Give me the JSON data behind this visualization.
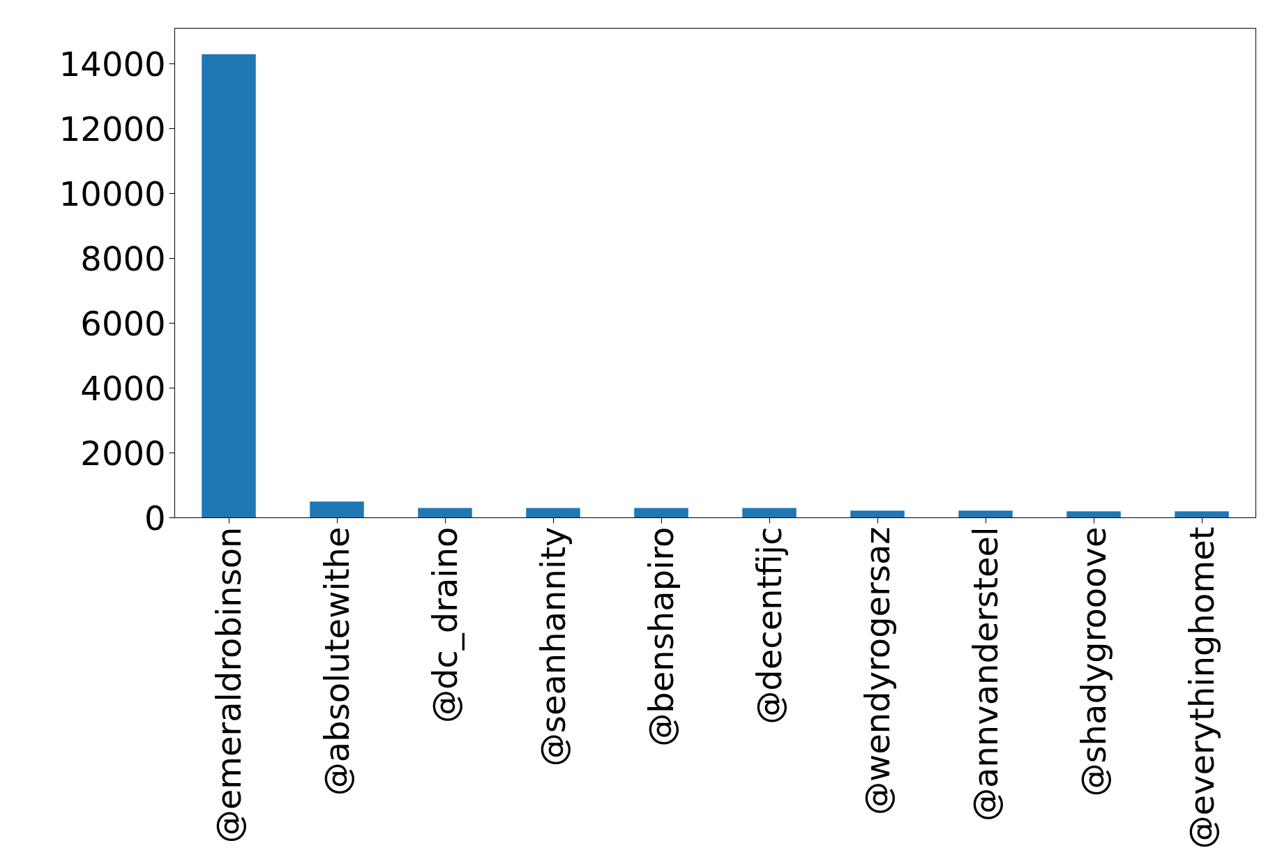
{
  "chart_data": {
    "type": "bar",
    "categories": [
      "@emeraldrobinson",
      "@absolutewithe",
      "@dc_draino",
      "@seanhannity",
      "@benshapiro",
      "@decentfijc",
      "@wendyrogersaz",
      "@annvandersteel",
      "@shadygrooove",
      "@everythinghomet"
    ],
    "values": [
      14300,
      500,
      300,
      300,
      300,
      300,
      220,
      220,
      200,
      200
    ],
    "color": "#1f77b4",
    "ylim": [
      0,
      15100
    ],
    "yticks": [
      0,
      2000,
      4000,
      6000,
      8000,
      10000,
      12000,
      14000
    ],
    "grid": false
  }
}
